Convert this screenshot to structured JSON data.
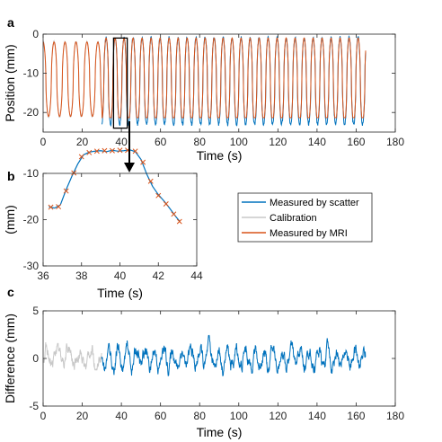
{
  "figure": {
    "panel_labels": [
      "a",
      "b",
      "c"
    ],
    "legend": {
      "items": [
        {
          "label": "Measured by scatter",
          "color": "#0072BD"
        },
        {
          "label": "Calibration",
          "color": "#C8C8C8"
        },
        {
          "label": "Measured by MRI",
          "color": "#D95319"
        }
      ]
    }
  },
  "chart_data": [
    {
      "id": "a",
      "type": "line",
      "xlabel": "Time (s)",
      "ylabel": "Position (mm)",
      "xlim": [
        0,
        180
      ],
      "ylim": [
        -25,
        0
      ],
      "xticks": [
        0,
        20,
        40,
        60,
        80,
        100,
        120,
        140,
        160,
        180
      ],
      "yticks": [
        -20,
        -10,
        0
      ],
      "zoom_box": {
        "x": [
          36,
          43
        ],
        "y": [
          -24,
          -1
        ]
      },
      "series": [
        {
          "name": "Calibration",
          "color": "#C8C8C8",
          "x_range": [
            0,
            30
          ],
          "description_values": {
            "period_s": 5.6,
            "min_mm": -21,
            "max_mm": -2
          }
        },
        {
          "name": "Measured by scatter",
          "color": "#0072BD",
          "x_range": [
            30,
            165
          ],
          "description_values": {
            "period_s": 4.6,
            "min_mm": -23,
            "max_mm": -1
          }
        },
        {
          "name": "Measured by MRI",
          "color": "#D95319",
          "x_range": [
            0,
            165
          ],
          "description_values": {
            "period_s": 5.6,
            "min_mm": -22,
            "max_mm": -3
          }
        }
      ]
    },
    {
      "id": "b",
      "type": "line",
      "xlabel": "Time (s)",
      "ylabel": "(mm)",
      "xlim": [
        36,
        44
      ],
      "ylim": [
        -30,
        -10
      ],
      "xticks": [
        36,
        38,
        40,
        42,
        44
      ],
      "yticks": [
        -30,
        -20,
        -10
      ],
      "series": [
        {
          "name": "Measured by scatter",
          "color": "#0072BD",
          "x": [
            36.3,
            36.6,
            36.9,
            37.2,
            37.5,
            37.8,
            38.1,
            38.4,
            38.7,
            39.0,
            39.3,
            39.6,
            39.9,
            40.2,
            40.5,
            40.8,
            41.1,
            41.4,
            41.7,
            42.0,
            42.3,
            42.6,
            42.9,
            43.1
          ],
          "y": [
            -17.2,
            -17.5,
            -16.8,
            -13.5,
            -10.6,
            -8.0,
            -6.0,
            -5.4,
            -5.2,
            -5.1,
            -5.3,
            -5.0,
            -5.2,
            -5.1,
            -4.9,
            -5.3,
            -7.0,
            -10.2,
            -12.8,
            -14.6,
            -16.0,
            -17.6,
            -19.3,
            -20.3
          ]
        },
        {
          "name": "Measured by MRI",
          "color": "#D95319",
          "marker": "x",
          "x": [
            36.4,
            36.8,
            37.2,
            37.6,
            38.0,
            38.4,
            38.8,
            39.2,
            39.6,
            40.0,
            40.4,
            40.8,
            41.2,
            41.6,
            42.0,
            42.4,
            42.8,
            43.1
          ],
          "y": [
            -17.3,
            -17.2,
            -13.8,
            -9.9,
            -6.4,
            -5.5,
            -5.2,
            -5.1,
            -5.1,
            -5.0,
            -5.0,
            -5.2,
            -7.6,
            -11.7,
            -14.8,
            -16.6,
            -18.8,
            -20.4
          ]
        }
      ]
    },
    {
      "id": "c",
      "type": "line",
      "xlabel": "Time (s)",
      "ylabel": "Difference (mm)",
      "xlim": [
        0,
        180
      ],
      "ylim": [
        -5,
        5
      ],
      "xticks": [
        0,
        20,
        40,
        60,
        80,
        100,
        120,
        140,
        160,
        180
      ],
      "yticks": [
        -5,
        0,
        5
      ],
      "series": [
        {
          "name": "Calibration",
          "color": "#C8C8C8",
          "x_range": [
            0,
            30
          ],
          "description_values": {
            "min_mm": -1.2,
            "max_mm": 1.8
          }
        },
        {
          "name": "Measured by scatter",
          "color": "#0072BD",
          "x_range": [
            30,
            165
          ],
          "description_values": {
            "min_mm": -3.0,
            "max_mm": 2.5
          }
        }
      ]
    }
  ]
}
